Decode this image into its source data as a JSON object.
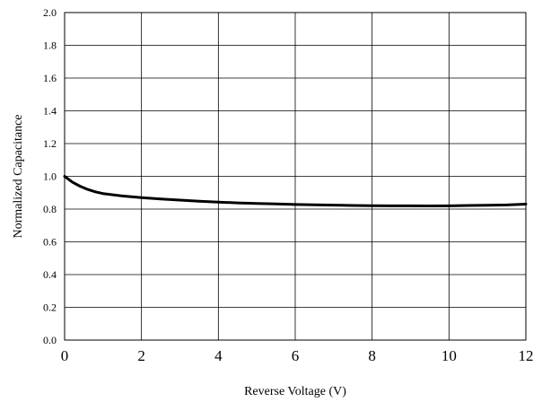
{
  "chart_data": {
    "type": "line",
    "xlabel": "Reverse Voltage (V)",
    "ylabel": "Normalized Capacitance",
    "xlim": [
      0,
      12
    ],
    "ylim": [
      0,
      2.0
    ],
    "x_ticks": [
      "0",
      "2",
      "4",
      "6",
      "8",
      "10",
      "12"
    ],
    "y_ticks": [
      "0.0",
      "0.2",
      "0.4",
      "0.6",
      "0.8",
      "1.0",
      "1.2",
      "1.4",
      "1.6",
      "1.8",
      "2.0"
    ],
    "grid": true,
    "series": [
      {
        "color": "#000000",
        "x": [
          0,
          0.2,
          0.4,
          0.6,
          0.8,
          1.0,
          1.5,
          2.0,
          2.5,
          3.0,
          3.5,
          4.0,
          4.5,
          5.0,
          5.5,
          6.0,
          6.5,
          7.0,
          7.5,
          8.0,
          8.5,
          9.0,
          9.5,
          10.0,
          10.5,
          11.0,
          11.5,
          12.0
        ],
        "y": [
          1.0,
          0.965,
          0.94,
          0.92,
          0.905,
          0.895,
          0.88,
          0.87,
          0.862,
          0.855,
          0.848,
          0.843,
          0.838,
          0.834,
          0.831,
          0.828,
          0.826,
          0.824,
          0.822,
          0.821,
          0.82,
          0.82,
          0.819,
          0.82,
          0.822,
          0.823,
          0.825,
          0.83
        ]
      }
    ]
  }
}
